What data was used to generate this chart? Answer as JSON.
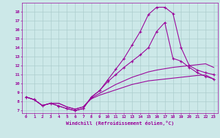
{
  "xlabel": "Windchill (Refroidissement éolien,°C)",
  "bg_color": "#cce8e8",
  "grid_color": "#aacccc",
  "line_color": "#990099",
  "xlim": [
    -0.5,
    23.5
  ],
  "ylim": [
    6.7,
    19.0
  ],
  "xticks": [
    0,
    1,
    2,
    3,
    4,
    5,
    6,
    7,
    8,
    9,
    10,
    11,
    12,
    13,
    14,
    15,
    16,
    17,
    18,
    19,
    20,
    21,
    22,
    23
  ],
  "yticks": [
    7,
    8,
    9,
    10,
    11,
    12,
    13,
    14,
    15,
    16,
    17,
    18
  ],
  "lines": [
    {
      "x": [
        0,
        1,
        2,
        3,
        4,
        5,
        6,
        7,
        8,
        9,
        10,
        11,
        12,
        13,
        14,
        15,
        16,
        17,
        18,
        19,
        20,
        21,
        22,
        23
      ],
      "y": [
        8.5,
        8.2,
        7.55,
        7.8,
        7.8,
        7.4,
        7.15,
        7.4,
        8.3,
        8.7,
        9.0,
        9.3,
        9.6,
        9.9,
        10.1,
        10.3,
        10.4,
        10.5,
        10.6,
        10.7,
        10.8,
        10.9,
        10.95,
        10.5
      ],
      "marker": false
    },
    {
      "x": [
        0,
        1,
        2,
        3,
        4,
        5,
        6,
        7,
        8,
        9,
        10,
        11,
        12,
        13,
        14,
        15,
        16,
        17,
        18,
        19,
        20,
        21,
        22,
        23
      ],
      "y": [
        8.5,
        8.2,
        7.55,
        7.8,
        7.8,
        7.4,
        7.15,
        7.4,
        8.4,
        8.9,
        9.4,
        9.9,
        10.3,
        10.7,
        11.0,
        11.3,
        11.5,
        11.65,
        11.8,
        11.9,
        12.0,
        12.1,
        12.2,
        11.8
      ],
      "marker": false
    },
    {
      "x": [
        0,
        1,
        2,
        3,
        4,
        5,
        6,
        7,
        8,
        9,
        10,
        11,
        12,
        13,
        14,
        15,
        16,
        17,
        18,
        19,
        20,
        21,
        22,
        23
      ],
      "y": [
        8.5,
        8.2,
        7.55,
        7.8,
        7.5,
        7.2,
        7.0,
        7.2,
        8.5,
        9.2,
        10.4,
        11.6,
        12.8,
        14.3,
        15.8,
        17.7,
        18.5,
        18.5,
        17.8,
        14.0,
        12.0,
        11.5,
        11.2,
        11.0
      ],
      "marker": true
    },
    {
      "x": [
        0,
        1,
        2,
        3,
        4,
        5,
        6,
        7,
        8,
        9,
        10,
        11,
        12,
        13,
        14,
        15,
        16,
        17,
        18,
        19,
        20,
        21,
        22,
        23
      ],
      "y": [
        8.5,
        8.2,
        7.55,
        7.8,
        7.5,
        7.2,
        7.0,
        7.2,
        8.5,
        9.2,
        10.2,
        11.0,
        11.8,
        12.5,
        13.2,
        14.0,
        15.8,
        16.8,
        12.8,
        12.5,
        11.8,
        11.2,
        10.8,
        10.5
      ],
      "marker": true
    }
  ]
}
